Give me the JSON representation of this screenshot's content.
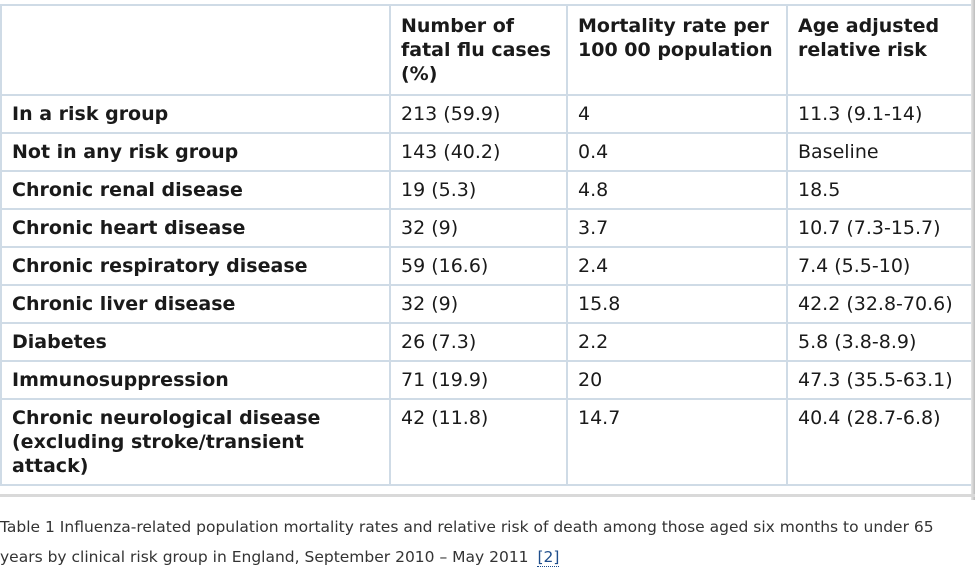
{
  "table": {
    "headers": [
      "",
      "Number of fatal flu cases (%)",
      "Mortality rate per 100 00 population",
      "Age adjusted relative risk"
    ],
    "rows": [
      [
        "In a risk group",
        "213 (59.9)",
        "4",
        "11.3 (9.1-14)"
      ],
      [
        "Not in any risk group",
        "143 (40.2)",
        "0.4",
        "Baseline"
      ],
      [
        "Chronic renal disease",
        "19 (5.3)",
        "4.8",
        "18.5"
      ],
      [
        "Chronic heart disease",
        "32 (9)",
        "3.7",
        "10.7 (7.3-15.7)"
      ],
      [
        "Chronic respiratory disease",
        "59 (16.6)",
        "2.4",
        "7.4 (5.5-10)"
      ],
      [
        "Chronic liver disease",
        "32 (9)",
        "15.8",
        "42.2 (32.8-70.6)"
      ],
      [
        "Diabetes",
        "26 (7.3)",
        "2.2",
        "5.8 (3.8-8.9)"
      ],
      [
        "Immunosuppression",
        "71 (19.9)",
        "20",
        "47.3 (35.5-63.1)"
      ],
      [
        "Chronic neurological disease (excluding stroke/transient attack)",
        "42 (11.8)",
        "14.7",
        "40.4 (28.7-6.8)"
      ]
    ]
  },
  "caption": {
    "text": "Table 1 Influenza-related population mortality rates and relative risk of death among those aged six months to under 65 years by clinical risk group in England, September 2010 – May 2011",
    "ref_label": "[2]"
  }
}
